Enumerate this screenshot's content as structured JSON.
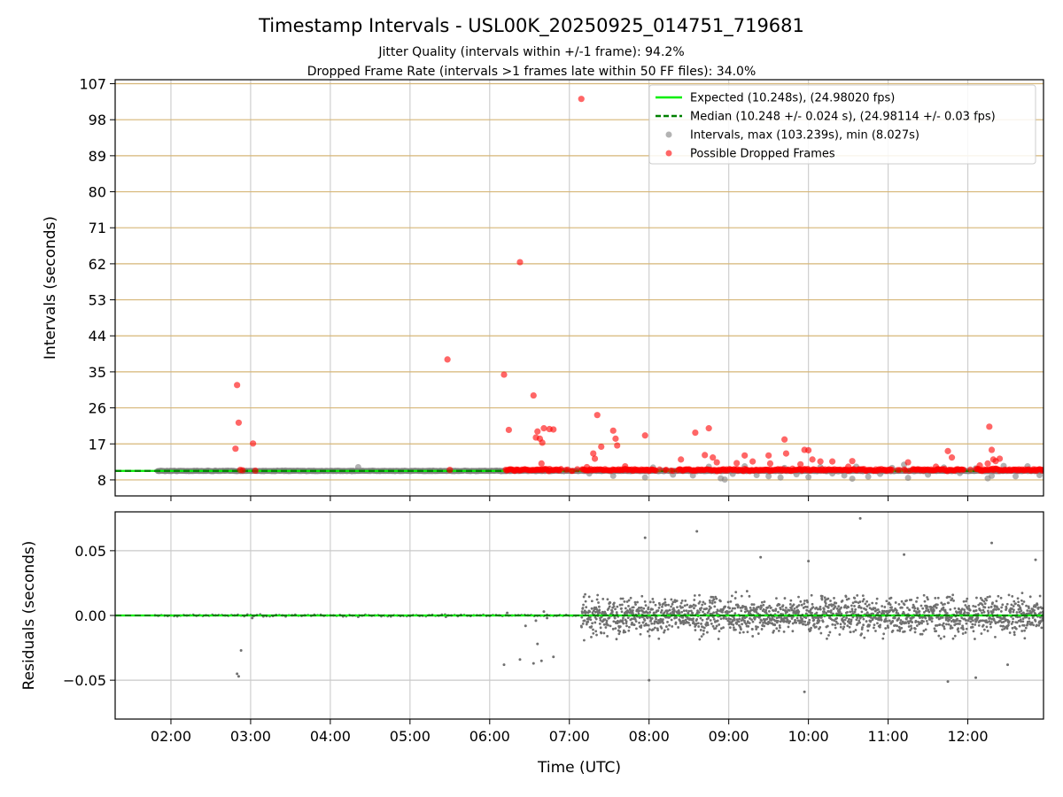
{
  "chart_data": [
    {
      "type": "scatter",
      "title": "Timestamp Intervals - USL00K_20250925_014751_719681",
      "subtitle_lines": [
        "Jitter Quality (intervals within +/-1 frame): 94.2%",
        "Dropped Frame Rate (intervals >1 frames late within 50 FF files): 34.0%"
      ],
      "xlabel": "",
      "ylabel": "Intervals (seconds)",
      "xlim": [
        1.3,
        12.95
      ],
      "ylim": [
        4.0,
        108.0
      ],
      "xticks": [
        2,
        3,
        4,
        5,
        6,
        7,
        8,
        9,
        10,
        11,
        12
      ],
      "xtick_labels": [
        "02:00",
        "03:00",
        "04:00",
        "05:00",
        "06:00",
        "07:00",
        "08:00",
        "09:00",
        "10:00",
        "11:00",
        "12:00"
      ],
      "yticks": [
        8,
        17,
        26,
        35,
        44,
        53,
        62,
        71,
        80,
        89,
        98,
        107
      ],
      "ytick_labels": [
        "8",
        "17",
        "26",
        "35",
        "44",
        "53",
        "62",
        "71",
        "80",
        "89",
        "98",
        "107"
      ],
      "grid": true,
      "legend_position": "top-right",
      "expected_interval": 10.248,
      "median_interval": 10.248,
      "series": [
        {
          "name": "Expected (10.248s), (24.98020 fps)",
          "kind": "line",
          "color": "#00ee00",
          "x": [
            1.3,
            12.95
          ],
          "y": [
            10.248,
            10.248
          ]
        },
        {
          "name": "Median (10.248 +/- 0.024 s), (24.98114 +/- 0.03 fps)",
          "kind": "dashed-line",
          "color": "#008000",
          "x": [
            1.3,
            12.95
          ],
          "y": [
            10.248,
            10.248
          ]
        },
        {
          "name": "Intervals, max (103.239s), min (8.027s)",
          "kind": "scatter",
          "color": "#808080",
          "band": {
            "x_start": 1.83,
            "x_end": 12.95,
            "y": 10.25
          },
          "x": [
            4.35,
            7.25,
            7.55,
            7.95,
            8.05,
            8.3,
            8.55,
            8.75,
            8.9,
            9.05,
            9.2,
            9.35,
            9.5,
            9.7,
            9.85,
            10.0,
            10.15,
            10.3,
            10.45,
            10.6,
            10.75,
            10.9,
            11.05,
            11.25,
            11.5,
            11.7,
            11.9,
            12.1,
            12.3,
            12.45,
            12.6,
            12.75,
            12.9,
            8.95,
            9.65,
            10.55,
            11.2,
            12.25
          ],
          "y": [
            11.2,
            9.6,
            9.0,
            8.6,
            11.1,
            9.3,
            9.1,
            11.3,
            8.4,
            9.5,
            11.4,
            9.2,
            8.9,
            11.0,
            9.4,
            8.7,
            11.2,
            9.6,
            9.1,
            11.3,
            8.8,
            9.5,
            11.0,
            8.5,
            9.3,
            11.1,
            9.7,
            10.9,
            9.0,
            11.5,
            8.9,
            11.4,
            9.2,
            8.1,
            8.6,
            8.3,
            11.8,
            8.4
          ]
        },
        {
          "name": "Possible Dropped Frames",
          "kind": "scatter",
          "color": "#ff0000",
          "band": {
            "x_start": 6.2,
            "x_end": 12.95,
            "y": 10.5
          },
          "x": [
            2.83,
            2.85,
            2.87,
            2.81,
            3.03,
            2.9,
            3.06,
            5.47,
            5.5,
            6.18,
            6.24,
            6.38,
            6.55,
            6.58,
            6.6,
            6.63,
            6.66,
            6.68,
            6.75,
            6.8,
            6.65,
            7.15,
            7.3,
            7.32,
            7.35,
            7.4,
            7.55,
            7.58,
            7.6,
            7.95,
            8.4,
            8.58,
            8.75,
            8.7,
            8.8,
            8.85,
            9.2,
            9.3,
            9.5,
            9.52,
            9.7,
            9.72,
            9.95,
            10.0,
            10.05,
            10.15,
            10.3,
            10.5,
            10.55,
            11.25,
            11.75,
            11.8,
            12.27,
            12.3,
            12.32,
            12.35,
            12.25,
            12.4,
            7.22,
            7.7,
            9.1,
            9.9,
            11.6,
            12.15
          ],
          "y": [
            31.7,
            22.3,
            10.5,
            15.8,
            17.1,
            10.4,
            10.3,
            38.1,
            10.5,
            34.3,
            20.5,
            62.4,
            29.1,
            18.6,
            20.1,
            18.3,
            17.3,
            20.9,
            20.7,
            20.6,
            12.1,
            103.2,
            14.6,
            13.3,
            24.2,
            16.3,
            20.3,
            18.3,
            16.6,
            19.1,
            13.1,
            19.8,
            20.9,
            14.2,
            13.6,
            12.4,
            14.1,
            12.6,
            14.1,
            12.1,
            18.1,
            14.6,
            15.5,
            15.4,
            13.1,
            12.6,
            12.6,
            11.3,
            12.7,
            12.4,
            15.2,
            13.6,
            21.3,
            15.5,
            13.1,
            12.7,
            12.1,
            13.3,
            11.2,
            11.4,
            12.2,
            11.9,
            11.3,
            11.6
          ]
        }
      ]
    },
    {
      "type": "scatter",
      "title": "",
      "xlabel": "Time (UTC)",
      "ylabel": "Residuals (seconds)",
      "xlim": [
        1.3,
        12.95
      ],
      "ylim": [
        -0.08,
        0.08
      ],
      "xticks": [
        2,
        3,
        4,
        5,
        6,
        7,
        8,
        9,
        10,
        11,
        12
      ],
      "xtick_labels": [
        "02:00",
        "03:00",
        "04:00",
        "05:00",
        "06:00",
        "07:00",
        "08:00",
        "09:00",
        "10:00",
        "11:00",
        "12:00"
      ],
      "yticks": [
        -0.05,
        0.0,
        0.05
      ],
      "ytick_labels": [
        "−0.05",
        "0.00",
        "0.05"
      ],
      "grid": true,
      "series": [
        {
          "name": "Expected",
          "kind": "line",
          "color": "#00ee00",
          "x": [
            1.3,
            12.95
          ],
          "y": [
            0.0,
            0.0
          ]
        },
        {
          "name": "Median",
          "kind": "dashed-line",
          "color": "#008000",
          "x": [
            1.3,
            12.95
          ],
          "y": [
            0.0,
            0.0
          ]
        },
        {
          "name": "Residuals",
          "kind": "scatter",
          "color": "#707070",
          "x": [
            2.83,
            2.85,
            2.88,
            3.02,
            4.35,
            5.45,
            6.18,
            6.38,
            6.45,
            6.55,
            6.6,
            6.65,
            6.72,
            6.8,
            6.22,
            6.58,
            6.68,
            7.95,
            8.6,
            9.4,
            10.0,
            10.65,
            11.2,
            11.75,
            12.1,
            12.5,
            12.85,
            8.0,
            9.95,
            12.3
          ],
          "y": [
            -0.045,
            -0.047,
            -0.027,
            -0.002,
            -0.001,
            -0.001,
            -0.038,
            -0.034,
            -0.008,
            -0.037,
            -0.022,
            -0.035,
            -0.002,
            -0.032,
            0.002,
            -0.004,
            0.003,
            0.06,
            0.065,
            0.045,
            0.042,
            0.075,
            0.047,
            -0.051,
            -0.048,
            -0.038,
            0.043,
            -0.05,
            -0.059,
            0.056
          ],
          "cloud": {
            "x_start": 7.15,
            "x_end": 12.95,
            "spread": 0.02
          }
        }
      ]
    }
  ]
}
